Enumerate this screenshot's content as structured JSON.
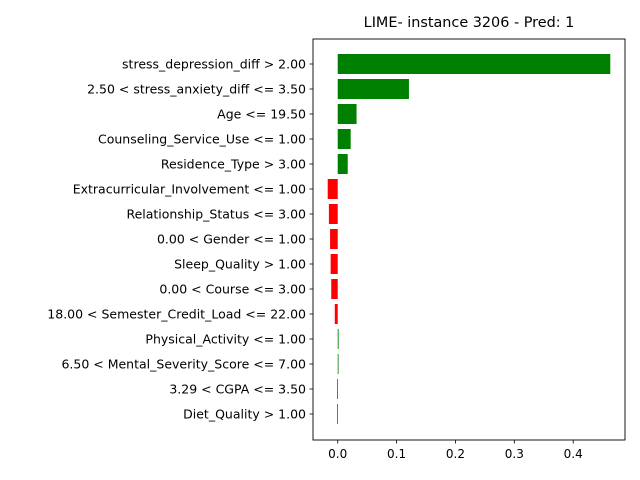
{
  "chart_data": {
    "type": "bar",
    "orientation": "horizontal",
    "title": "LIME- instance 3206 - Pred: 1",
    "xlabel": "",
    "ylabel": "",
    "xlim": [
      -0.042,
      0.488
    ],
    "xticks": [
      0.0,
      0.1,
      0.2,
      0.3,
      0.4
    ],
    "xtick_labels": [
      "0.0",
      "0.1",
      "0.2",
      "0.3",
      "0.4"
    ],
    "grid": false,
    "legend": "none",
    "colors": {
      "positive": "#008000",
      "negative": "#ff0000"
    },
    "categories": [
      "stress_depression_diff > 2.00",
      "2.50 < stress_anxiety_diff <= 3.50",
      "Age <= 19.50",
      "Counseling_Service_Use <= 1.00",
      "Residence_Type > 3.00",
      "Extracurricular_Involvement <= 1.00",
      "Relationship_Status <= 3.00",
      "0.00 < Gender <= 1.00",
      "Sleep_Quality > 1.00",
      "0.00 < Course <= 3.00",
      "18.00 < Semester_Credit_Load <= 22.00",
      "Physical_Activity <= 1.00",
      "6.50 < Mental_Severity_Score <= 7.00",
      "3.29 < CGPA <= 3.50",
      "Diet_Quality > 1.00"
    ],
    "values": [
      0.463,
      0.121,
      0.032,
      0.022,
      0.017,
      -0.017,
      -0.015,
      -0.013,
      -0.012,
      -0.011,
      -0.005,
      0.0015,
      0.0012,
      -0.0012,
      -0.0012
    ]
  }
}
